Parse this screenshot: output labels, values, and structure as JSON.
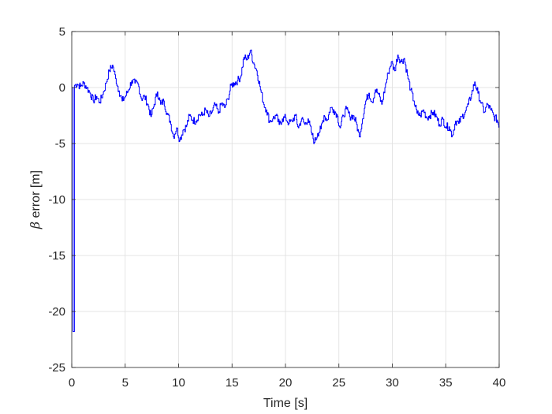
{
  "chart_data": {
    "type": "line",
    "title": "",
    "xlabel": "Time [s]",
    "ylabel_symbol": "β",
    "ylabel": "error [m]",
    "xlim": [
      0,
      40
    ],
    "ylim": [
      -25,
      5
    ],
    "xticks": [
      "0",
      "5",
      "10",
      "15",
      "20",
      "25",
      "30",
      "35",
      "40"
    ],
    "yticks": [
      "5",
      "0",
      "-5",
      "-10",
      "-15",
      "-20",
      "-25"
    ],
    "grid": true,
    "series": [
      {
        "color": "#0000ff",
        "x": [
          0,
          0.12,
          0.25,
          0.5,
          0.8,
          1.1,
          1.4,
          1.7,
          2.0,
          2.3,
          2.6,
          2.9,
          3.2,
          3.5,
          3.8,
          4.1,
          4.4,
          4.7,
          5.0,
          5.3,
          5.6,
          5.9,
          6.2,
          6.5,
          6.8,
          7.1,
          7.4,
          7.7,
          8.0,
          8.3,
          8.6,
          8.9,
          9.2,
          9.5,
          9.8,
          10.1,
          10.4,
          10.7,
          11.0,
          11.3,
          11.6,
          11.9,
          12.2,
          12.5,
          12.8,
          13.1,
          13.4,
          13.7,
          14.0,
          14.3,
          14.6,
          14.9,
          15.2,
          15.5,
          15.8,
          16.1,
          16.4,
          16.7,
          17.0,
          17.3,
          17.6,
          17.9,
          18.2,
          18.5,
          18.8,
          19.1,
          19.4,
          19.7,
          20.0,
          20.3,
          20.6,
          20.9,
          21.2,
          21.5,
          21.8,
          22.1,
          22.4,
          22.7,
          23.0,
          23.3,
          23.6,
          23.9,
          24.2,
          24.5,
          24.8,
          25.1,
          25.4,
          25.7,
          26.0,
          26.3,
          26.6,
          26.9,
          27.2,
          27.5,
          27.8,
          28.1,
          28.4,
          28.7,
          29.0,
          29.3,
          29.6,
          29.9,
          30.2,
          30.5,
          30.8,
          31.1,
          31.4,
          31.7,
          32.0,
          32.3,
          32.6,
          32.9,
          33.2,
          33.5,
          33.8,
          34.1,
          34.4,
          34.7,
          35.0,
          35.3,
          35.6,
          35.9,
          36.2,
          36.5,
          36.8,
          37.1,
          37.4,
          37.7,
          38.0,
          38.3,
          38.6,
          38.9,
          39.2,
          39.5,
          39.8,
          40.0
        ],
        "y": [
          0,
          -21.8,
          0.2,
          0.3,
          0.1,
          0.4,
          0.0,
          -0.5,
          -1.2,
          -0.8,
          -1.3,
          -0.6,
          0.4,
          1.5,
          2.0,
          0.8,
          -0.3,
          -1.2,
          -0.8,
          -0.2,
          0.6,
          0.4,
          0.3,
          -1.0,
          -0.8,
          -1.5,
          -2.6,
          -1.5,
          -0.4,
          -1.5,
          -1.2,
          -2.3,
          -3.0,
          -4.4,
          -3.6,
          -4.7,
          -3.8,
          -3.5,
          -2.5,
          -2.9,
          -3.0,
          -2.4,
          -2.5,
          -2.0,
          -2.6,
          -2.2,
          -1.5,
          -2.3,
          -1.4,
          -1.8,
          -1.0,
          0.2,
          0.4,
          0.6,
          1.0,
          2.7,
          2.5,
          3.3,
          2.2,
          1.5,
          0.1,
          -1.3,
          -2.0,
          -3.0,
          -2.8,
          -2.5,
          -3.3,
          -2.8,
          -2.7,
          -3.2,
          -3.0,
          -2.5,
          -3.6,
          -2.8,
          -3.3,
          -2.8,
          -4.0,
          -4.9,
          -4.1,
          -3.7,
          -2.5,
          -2.9,
          -1.8,
          -2.0,
          -2.4,
          -3.6,
          -2.5,
          -1.9,
          -2.6,
          -2.5,
          -3.1,
          -4.4,
          -2.8,
          -1.2,
          -0.5,
          -1.3,
          -0.2,
          -0.6,
          -1.5,
          0.0,
          1.3,
          2.3,
          1.5,
          2.9,
          2.3,
          2.6,
          1.1,
          -0.2,
          -1.2,
          -2.3,
          -2.5,
          -2.0,
          -2.7,
          -2.5,
          -2.2,
          -2.6,
          -3.3,
          -2.8,
          -3.5,
          -3.5,
          -4.3,
          -3.0,
          -3.2,
          -2.6,
          -2.2,
          -1.5,
          -0.6,
          0.5,
          -0.5,
          -1.4,
          -2.2,
          -1.5,
          -2.0,
          -2.6,
          -2.9,
          -3.4
        ]
      }
    ]
  }
}
